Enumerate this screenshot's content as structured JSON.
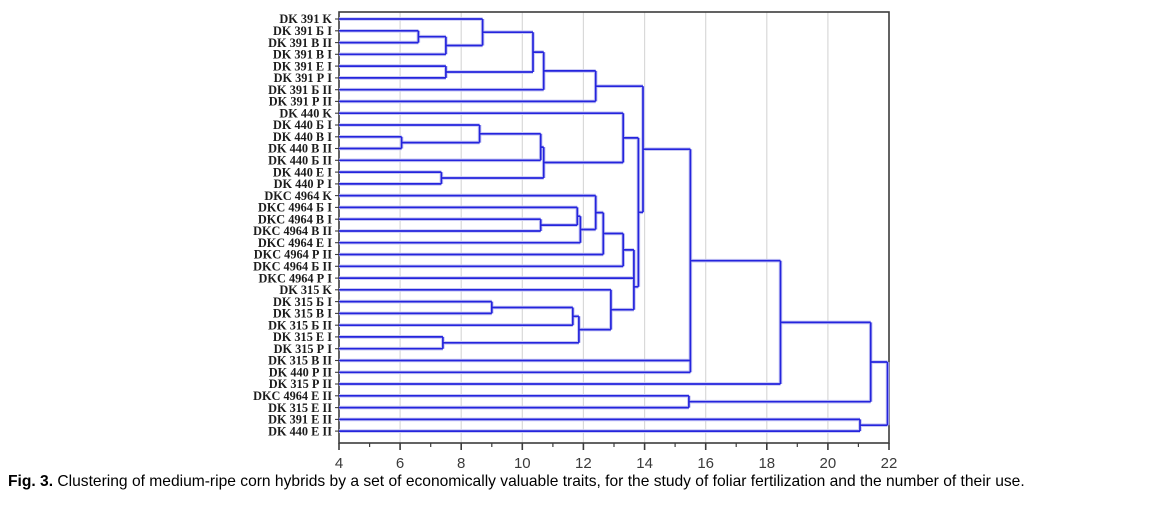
{
  "figure": {
    "caption_label": "Fig. 3.",
    "caption_text": "Clustering of medium-ripe corn hybrids by a set of economically valuable traits, for the study of foliar fertilization and the number of their use."
  },
  "chart_data": {
    "type": "dendrogram",
    "orientation": "horizontal",
    "linkage_axis": "distance",
    "leaves": [
      "DK 391 K",
      "DK 391 Б I",
      "DK 391 В II",
      "DK 391 В I",
      "DK 391 Е I",
      "DK 391 Р I",
      "DK 391 Б II",
      "DK 391 Р II",
      "DK 440 K",
      "DK 440 Б I",
      "DK 440 В I",
      "DK 440 В II",
      "DK 440 Б II",
      "DK 440 Е I",
      "DK 440 Р I",
      "DKC 4964 K",
      "DKC 4964 Б I",
      "DKC 4964 В I",
      "DKC 4964 В II",
      "DKC 4964 Е I",
      "DKC 4964 Р II",
      "DKC 4964 Б II",
      "DKC 4964 Р I",
      "DK 315 K",
      "DK 315 Б I",
      "DK 315 В I",
      "DK 315 Б II",
      "DK 315 Е I",
      "DK 315 Р I",
      "DK 315 В II",
      "DK 440 Р II",
      "DK 315 Р II",
      "DKC 4964 Е II",
      "DK 315 Е II",
      "DK 391 Е II",
      "DK 440 Е II"
    ],
    "merges": [
      {
        "a": "L2",
        "b": "L3",
        "d": 6.6
      },
      {
        "a": "M1",
        "b": "L4",
        "d": 7.5
      },
      {
        "a": "L1",
        "b": "M2",
        "d": 8.7
      },
      {
        "a": "L5",
        "b": "L6",
        "d": 7.5
      },
      {
        "a": "M3",
        "b": "M4",
        "d": 10.35
      },
      {
        "a": "M5",
        "b": "L7",
        "d": 10.7
      },
      {
        "a": "M6",
        "b": "L8",
        "d": 12.4
      },
      {
        "a": "L11",
        "b": "L12",
        "d": 6.05
      },
      {
        "a": "L10",
        "b": "M8",
        "d": 8.6
      },
      {
        "a": "M9",
        "b": "L13",
        "d": 10.6
      },
      {
        "a": "L14",
        "b": "L15",
        "d": 7.35
      },
      {
        "a": "M10",
        "b": "M11",
        "d": 10.7
      },
      {
        "a": "L9",
        "b": "M12",
        "d": 13.3
      },
      {
        "a": "L18",
        "b": "L19",
        "d": 10.6
      },
      {
        "a": "L17",
        "b": "M14",
        "d": 11.8
      },
      {
        "a": "M15",
        "b": "L20",
        "d": 11.9
      },
      {
        "a": "L16",
        "b": "M16",
        "d": 12.4
      },
      {
        "a": "M17",
        "b": "L21",
        "d": 12.65
      },
      {
        "a": "M18",
        "b": "L22",
        "d": 13.3
      },
      {
        "a": "M19",
        "b": "L23",
        "d": 13.65
      },
      {
        "a": "L25",
        "b": "L26",
        "d": 9.0
      },
      {
        "a": "M21",
        "b": "L27",
        "d": 11.65
      },
      {
        "a": "L28",
        "b": "L29",
        "d": 7.4
      },
      {
        "a": "M22",
        "b": "M23",
        "d": 11.85
      },
      {
        "a": "L24",
        "b": "M24",
        "d": 12.9
      },
      {
        "a": "M20",
        "b": "M25",
        "d": 13.65
      },
      {
        "a": "M13",
        "b": "M26",
        "d": 13.8
      },
      {
        "a": "M7",
        "b": "M27",
        "d": 13.95
      },
      {
        "a": "M28",
        "b": "L30",
        "c": "L31",
        "d": 15.5
      },
      {
        "a": "M29",
        "b": "L32",
        "d": 18.45
      },
      {
        "a": "L33",
        "b": "L34",
        "d": 15.45
      },
      {
        "a": "M30",
        "b": "M31",
        "d": 21.4
      },
      {
        "a": "L35",
        "b": "L36",
        "d": 21.05
      },
      {
        "a": "M32",
        "b": "M33",
        "d": 21.95
      }
    ],
    "axis": {
      "min": 4,
      "max": 22,
      "major_ticks": [
        4,
        6,
        8,
        10,
        12,
        14,
        16,
        18,
        20,
        22
      ],
      "minor_step": 1,
      "gridlines": [
        6,
        8,
        10,
        12,
        14,
        16,
        18,
        20
      ],
      "position": "bottom"
    },
    "legend": "none",
    "colors": {
      "line": "#2424dd",
      "line_halo": "#c7c7f3",
      "frame": "#3c3c3c",
      "grid": "#d9d9d9",
      "label": "#1c1c1c",
      "tick_label": "#3b3b3b"
    }
  }
}
